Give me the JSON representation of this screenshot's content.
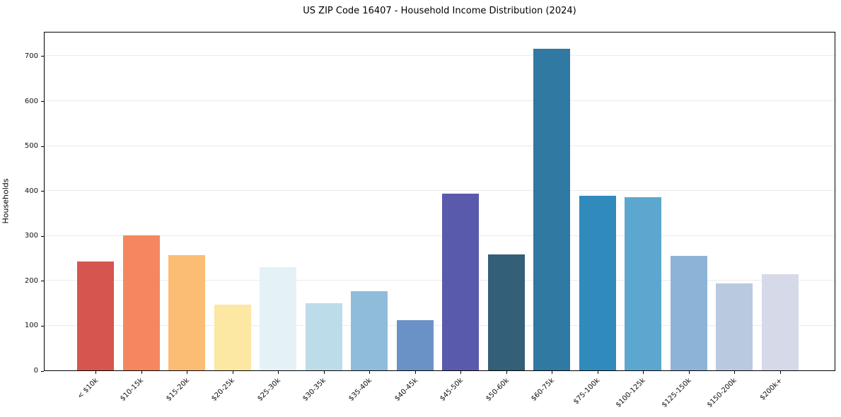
{
  "figure": {
    "title": "US ZIP Code 16407 - Household Income Distribution (2024)"
  },
  "chart_data": {
    "type": "bar",
    "title": "US ZIP Code 16407 - Household Income Distribution (2024)",
    "xlabel": "",
    "ylabel": "Households",
    "categories": [
      "< $10k",
      "$10-15k",
      "$15-20k",
      "$20-25k",
      "$25-30k",
      "$30-35k",
      "$35-40k",
      "$40-45k",
      "$45-50k",
      "$50-60k",
      "$60-75k",
      "$75-100k",
      "$100-125k",
      "$125-150k",
      "$150-200k",
      "$200k+"
    ],
    "values": [
      243,
      300,
      256,
      146,
      229,
      149,
      176,
      112,
      393,
      258,
      716,
      389,
      386,
      255,
      194,
      214
    ],
    "bar_colors": [
      "#d6554f",
      "#f4875f",
      "#fbbc74",
      "#fce7a3",
      "#e4f1f6",
      "#bcdcea",
      "#90bcdc",
      "#6b92c6",
      "#5a5aac",
      "#335f78",
      "#3079a3",
      "#318abc",
      "#5ca7d0",
      "#8db4d6",
      "#b9c9e0",
      "#d6d9e7"
    ],
    "ylim": [
      0,
      755
    ],
    "yticks": [
      0,
      100,
      200,
      300,
      400,
      500,
      600,
      700
    ],
    "grid": "horizontal",
    "legend": "none",
    "background": "#ffffff",
    "gridline_color": "#ebebee",
    "spine_color": "#000000"
  }
}
